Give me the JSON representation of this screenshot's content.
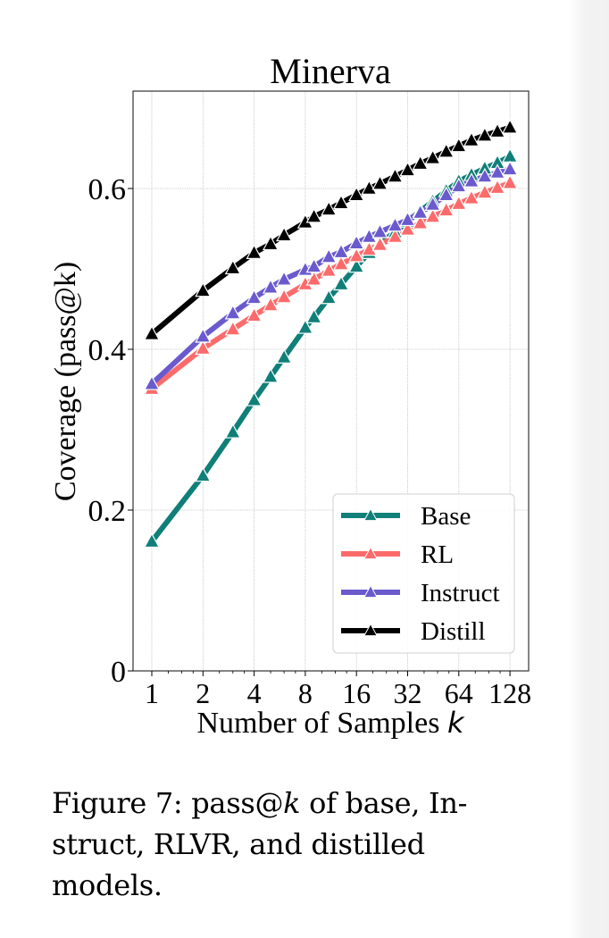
{
  "chart_data": {
    "type": "line",
    "title": "Minerva",
    "xlabel": "Number of Samples",
    "xlabel_var": "k",
    "ylabel": "Coverage (pass@k)",
    "xscale": "log2",
    "xlim": [
      0.85,
      150
    ],
    "ylim": [
      0,
      0.72
    ],
    "xticks": [
      1,
      2,
      4,
      8,
      16,
      32,
      64,
      128
    ],
    "xtick_labels": [
      "1",
      "2",
      "4",
      "8",
      "16",
      "32",
      "64",
      "128"
    ],
    "yticks": [
      0,
      0.2,
      0.4,
      0.6
    ],
    "ytick_labels": [
      "0",
      "0.2",
      "0.4",
      "0.6"
    ],
    "grid": true,
    "legend_position": "lower-right",
    "marker": "triangle",
    "x": [
      1,
      2,
      3,
      4,
      5,
      6,
      8,
      9,
      11,
      13,
      16,
      19,
      22,
      27,
      32,
      38,
      45,
      54,
      64,
      76,
      91,
      108,
      128
    ],
    "series": [
      {
        "name": "Base",
        "color": "#0f7f78",
        "values": [
          0.161,
          0.243,
          0.297,
          0.337,
          0.366,
          0.39,
          0.427,
          0.44,
          0.464,
          0.481,
          0.503,
          0.52,
          0.532,
          0.546,
          0.559,
          0.572,
          0.584,
          0.597,
          0.609,
          0.617,
          0.625,
          0.632,
          0.64
        ]
      },
      {
        "name": "RL",
        "color": "#fb6b6b",
        "values": [
          0.351,
          0.401,
          0.425,
          0.442,
          0.455,
          0.465,
          0.481,
          0.487,
          0.498,
          0.506,
          0.516,
          0.524,
          0.53,
          0.54,
          0.549,
          0.557,
          0.565,
          0.573,
          0.581,
          0.588,
          0.595,
          0.601,
          0.607
        ]
      },
      {
        "name": "Instruct",
        "color": "#6a5acd",
        "values": [
          0.357,
          0.416,
          0.445,
          0.464,
          0.477,
          0.487,
          0.499,
          0.503,
          0.515,
          0.521,
          0.532,
          0.54,
          0.546,
          0.554,
          0.561,
          0.57,
          0.58,
          0.592,
          0.603,
          0.609,
          0.615,
          0.62,
          0.624
        ]
      },
      {
        "name": "Distill",
        "color": "#000000",
        "values": [
          0.419,
          0.473,
          0.501,
          0.52,
          0.531,
          0.542,
          0.558,
          0.565,
          0.574,
          0.582,
          0.592,
          0.6,
          0.606,
          0.615,
          0.623,
          0.631,
          0.638,
          0.646,
          0.653,
          0.66,
          0.666,
          0.671,
          0.676
        ]
      }
    ]
  },
  "caption": {
    "line1_prefix": "Figure 7:  pass@",
    "line1_var": "k",
    "line1_suffix": " of base, In-",
    "line2": "struct, RLVR, and distilled",
    "line3": "models."
  }
}
